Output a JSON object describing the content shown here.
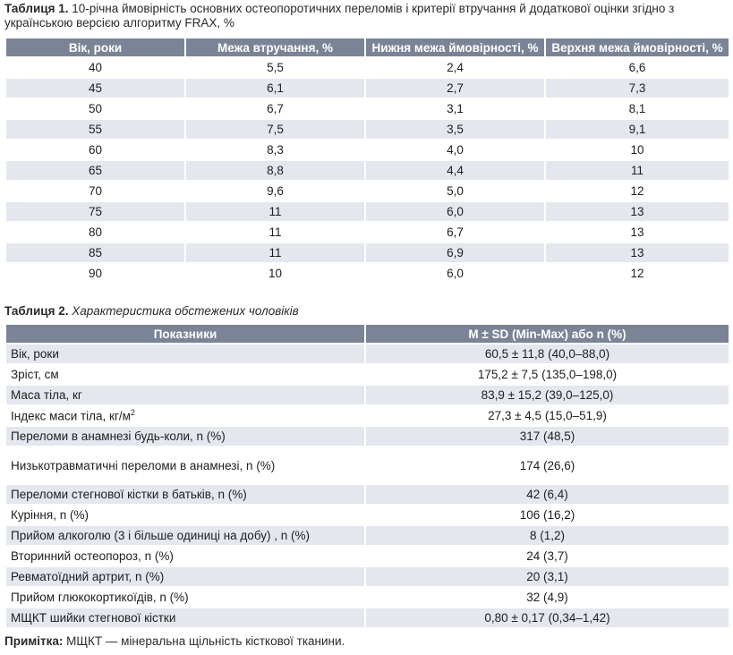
{
  "table1": {
    "caption_label": "Таблиця 1.",
    "caption_text": "10-річна ймовірність основних остеопоротичних переломів і критерії втручання й додаткової оцінки згідно з українською версією алгоритму FRAX, %",
    "headers": [
      "Вік, роки",
      "Межа втручання, %",
      "Нижня межа ймовірності, %",
      "Верхня межа ймовірності, %"
    ],
    "rows": [
      [
        "40",
        "5,5",
        "2,4",
        "6,6"
      ],
      [
        "45",
        "6,1",
        "2,7",
        "7,3"
      ],
      [
        "50",
        "6,7",
        "3,1",
        "8,1"
      ],
      [
        "55",
        "7,5",
        "3,5",
        "9,1"
      ],
      [
        "60",
        "8,3",
        "4,0",
        "10"
      ],
      [
        "65",
        "8,8",
        "4,4",
        "11"
      ],
      [
        "70",
        "9,6",
        "5,0",
        "12"
      ],
      [
        "75",
        "11",
        "6,0",
        "13"
      ],
      [
        "80",
        "11",
        "6,7",
        "13"
      ],
      [
        "85",
        "11",
        "6,9",
        "13"
      ],
      [
        "90",
        "10",
        "6,0",
        "12"
      ]
    ]
  },
  "table2": {
    "caption_label": "Таблиця 2.",
    "caption_text": "Характеристика обстежених чоловіків",
    "headers": [
      "Показники",
      "M ± SD (Min-Max) або n (%)"
    ],
    "rows": [
      [
        "Вік, роки",
        "60,5 ± 11,8 (40,0–88,0)"
      ],
      [
        "Зріст, см",
        "175,2 ± 7,5 (135,0–198,0)"
      ],
      [
        "Маса тіла, кг",
        "83,9 ± 15,2 (39,0–125,0)"
      ],
      [
        "Індекс маси тіла, кг/м",
        "27,3 ± 4,5 (15,0–51,9)"
      ],
      [
        "Переломи в анамнезі будь-коли, n (%)",
        "317 (48,5)"
      ],
      [
        "Низькотравматичні переломи в анамнезі, n (%)",
        "174 (26,6)"
      ],
      [
        "Переломи стегнової кістки в батьків, n (%)",
        "42 (6,4)"
      ],
      [
        "Куріння, n (%)",
        "106 (16,2)"
      ],
      [
        "Прийом алкоголю (3 і більше одиниці на добу) , n (%)",
        "8 (1,2)"
      ],
      [
        "Вторинний остеопороз, n (%)",
        "24 (3,7)"
      ],
      [
        "Ревматоїдний артрит, n (%)",
        "20 (3,1)"
      ],
      [
        "Прийом глюкокортикоїдів, n (%)",
        "32 (4,9)"
      ],
      [
        "МЩКТ шийки стегнової кістки",
        "0,80 ± 0,17 (0,34–1,42)"
      ]
    ],
    "bmi_superscript": "2"
  },
  "note": {
    "label": "Примітка:",
    "text": "МЩКТ — мінеральна щільність кісткової тканини."
  },
  "colors": {
    "header_bg": "#7b8496",
    "stripe_bg": "#e4e7ee"
  }
}
